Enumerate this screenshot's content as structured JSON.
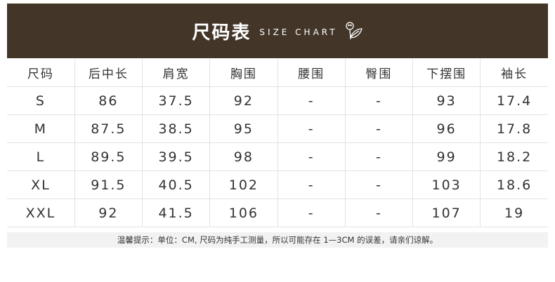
{
  "header": {
    "title": "尺码表",
    "subtitle": "SIZE CHART",
    "icon": "flower-leaf-icon",
    "background": "#433629"
  },
  "table": {
    "columns": [
      "尺码",
      "后中长",
      "肩宽",
      "胸围",
      "腰围",
      "臀围",
      "下摆围",
      "袖长"
    ],
    "rows": [
      [
        "S",
        "86",
        "37.5",
        "92",
        "-",
        "-",
        "93",
        "17.4"
      ],
      [
        "M",
        "87.5",
        "38.5",
        "95",
        "-",
        "-",
        "96",
        "17.8"
      ],
      [
        "L",
        "89.5",
        "39.5",
        "98",
        "-",
        "-",
        "99",
        "18.2"
      ],
      [
        "XL",
        "91.5",
        "40.5",
        "102",
        "-",
        "-",
        "103",
        "18.6"
      ],
      [
        "XXL",
        "92",
        "41.5",
        "106",
        "-",
        "-",
        "107",
        "19"
      ]
    ]
  },
  "note": "温馨提示：单位：CM, 尺码为纯手工测量，所以可能存在 1—3CM 的误差，请亲们谅解。"
}
